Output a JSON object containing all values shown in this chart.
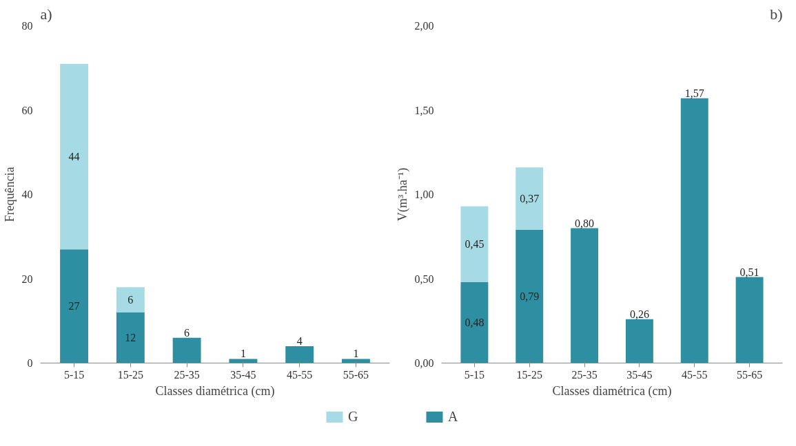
{
  "chart_data": [
    {
      "type": "bar",
      "stacked": true,
      "annotations": [
        "a)"
      ],
      "xlabel": "Classes diamétrica (cm)",
      "ylabel": "Frequência",
      "categories": [
        "5-15",
        "15-25",
        "25-35",
        "35-45",
        "45-55",
        "55-65"
      ],
      "series": [
        {
          "name": "A",
          "color": "#2e8fa3",
          "values": [
            27,
            12,
            6,
            1,
            4,
            1
          ]
        },
        {
          "name": "G",
          "color": "#a6dbe6",
          "values": [
            44,
            6,
            null,
            null,
            null,
            null
          ]
        }
      ],
      "ylim": [
        0,
        80
      ],
      "yticks": [
        0,
        20,
        40,
        60,
        80
      ],
      "grid": false,
      "data_labels": true,
      "legend": "bottom"
    },
    {
      "type": "bar",
      "stacked": true,
      "annotations": [
        "b)"
      ],
      "xlabel": "Classes diamétrica (cm)",
      "ylabel": "V(m³.ha⁻¹)",
      "categories": [
        "5-15",
        "15-25",
        "25-35",
        "35-45",
        "45-55",
        "55-65"
      ],
      "series": [
        {
          "color": "#2e8fa3",
          "values": [
            0.48,
            0.79,
            0.8,
            0.26,
            1.57,
            0.51
          ],
          "value_labels": [
            "0,48",
            "0,79",
            "0,80",
            "0,26",
            "1,57",
            "0,51"
          ]
        },
        {
          "color": "#a6dbe6",
          "values": [
            0.45,
            0.37,
            null,
            null,
            null,
            null
          ],
          "value_labels": [
            "0,45",
            "0,37",
            null,
            null,
            null,
            null
          ]
        }
      ],
      "ylim": [
        0,
        2
      ],
      "yticks": [
        {
          "value": 0,
          "label": "0,00"
        },
        {
          "value": 0.5,
          "label": "0,50"
        },
        {
          "value": 1,
          "label": "1,00"
        },
        {
          "value": 1.5,
          "label": "1,50"
        },
        {
          "value": 2,
          "label": "2,00"
        }
      ],
      "grid": false
    }
  ]
}
